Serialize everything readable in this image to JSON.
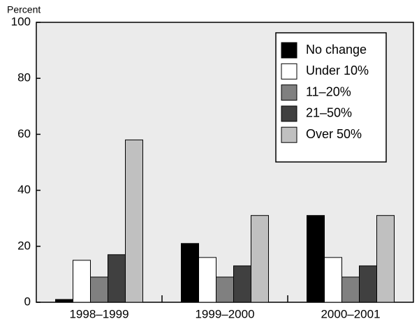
{
  "chart_data": {
    "type": "bar",
    "y_label": "Percent",
    "categories": [
      "1998–1999",
      "1999–2000",
      "2000–2001"
    ],
    "series": [
      {
        "name": "No change",
        "color": "#000000",
        "values": [
          1,
          21,
          31
        ]
      },
      {
        "name": "Under 10%",
        "color": "#ffffff",
        "values": [
          15,
          16,
          16
        ]
      },
      {
        "name": "11–20%",
        "color": "#808080",
        "values": [
          9,
          9,
          9
        ]
      },
      {
        "name": "21–50%",
        "color": "#404040",
        "values": [
          17,
          13,
          13
        ]
      },
      {
        "name": "Over 50%",
        "color": "#c0c0c0",
        "values": [
          58,
          31,
          31
        ]
      }
    ],
    "ylim": [
      0,
      100
    ],
    "yticks": [
      0,
      20,
      40,
      60,
      80,
      100
    ],
    "legend": "upper right"
  }
}
